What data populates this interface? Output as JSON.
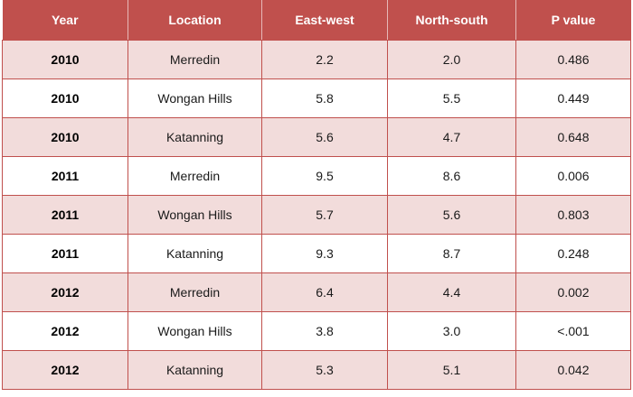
{
  "table": {
    "headers": [
      "Year",
      "Location",
      "East-west",
      "North-south",
      "P value"
    ],
    "rows": [
      [
        "2010",
        "Merredin",
        "2.2",
        "2.0",
        "0.486"
      ],
      [
        "2010",
        "Wongan Hills",
        "5.8",
        "5.5",
        "0.449"
      ],
      [
        "2010",
        "Katanning",
        "5.6",
        "4.7",
        "0.648"
      ],
      [
        "2011",
        "Merredin",
        "9.5",
        "8.6",
        "0.006"
      ],
      [
        "2011",
        "Wongan Hills",
        "5.7",
        "5.6",
        "0.803"
      ],
      [
        "2011",
        "Katanning",
        "9.3",
        "8.7",
        "0.248"
      ],
      [
        "2012",
        "Merredin",
        "6.4",
        "4.4",
        "0.002"
      ],
      [
        "2012",
        "Wongan Hills",
        "3.8",
        "3.0",
        "<.001"
      ],
      [
        "2012",
        "Katanning",
        "5.3",
        "5.1",
        "0.042"
      ]
    ]
  },
  "colors": {
    "header_background": "#c0504d",
    "header_text": "#ffffff",
    "band_row": "#f2dcdb",
    "plain_row": "#ffffff",
    "border": "#c0504d"
  }
}
